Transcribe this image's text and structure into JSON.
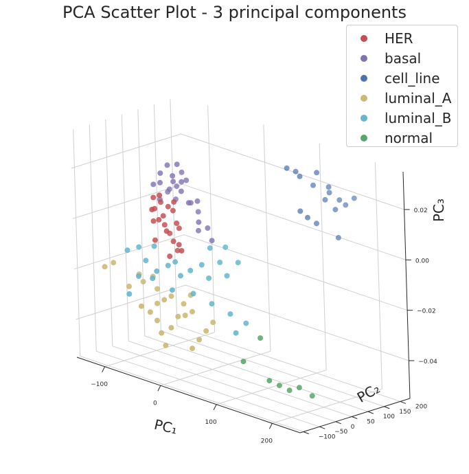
{
  "chart_data": {
    "type": "scatter",
    "projection": "3d",
    "title": "PCA Scatter Plot - 3 principal components",
    "xlabel": "PC₁",
    "ylabel": "PC₂",
    "zlabel": "PC₃",
    "x_ticks": [
      "−100",
      "0",
      "100",
      "200"
    ],
    "y_ticks": [
      "−100",
      "−50",
      "0",
      "50",
      "100",
      "150",
      "200"
    ],
    "z_ticks": [
      "−0.04",
      "−0.02",
      "0.00",
      "0.02"
    ],
    "grid": true,
    "legend_position": "top-right",
    "series": [
      {
        "name": "HER",
        "color": "#c44e52",
        "points": [
          [
            -45,
            -10,
            0.005
          ],
          [
            -60,
            -15,
            0.002
          ],
          [
            -30,
            -5,
            0.008
          ],
          [
            -40,
            0,
            -0.002
          ],
          [
            -55,
            -20,
            -0.005
          ],
          [
            -25,
            -10,
            0.012
          ],
          [
            -35,
            -18,
            0.0
          ],
          [
            -50,
            -8,
            0.01
          ],
          [
            -20,
            -12,
            0.004
          ],
          [
            -65,
            -2,
            0.006
          ],
          [
            -15,
            -15,
            -0.004
          ],
          [
            -42,
            -25,
            0.014
          ],
          [
            -28,
            2,
            -0.008
          ],
          [
            -52,
            -12,
            0.003
          ],
          [
            -38,
            -6,
            0.009
          ],
          [
            -58,
            -22,
            0.007
          ],
          [
            -22,
            -20,
            -0.003
          ],
          [
            -33,
            -14,
            -0.01
          ],
          [
            -47,
            -3,
            0.001
          ],
          [
            -18,
            -8,
            0.002
          ],
          [
            -10,
            -16,
            -0.006
          ],
          [
            -62,
            -10,
            0.011
          ]
        ]
      },
      {
        "name": "basal",
        "color": "#8172b2",
        "points": [
          [
            -60,
            10,
            0.02
          ],
          [
            -40,
            15,
            0.018
          ],
          [
            -20,
            5,
            0.016
          ],
          [
            -50,
            20,
            0.014
          ],
          [
            -30,
            25,
            0.022
          ],
          [
            -10,
            10,
            0.012
          ],
          [
            -70,
            5,
            0.015
          ],
          [
            -45,
            30,
            0.01
          ],
          [
            -25,
            15,
            0.019
          ],
          [
            -55,
            0,
            0.017
          ],
          [
            0,
            20,
            0.013
          ],
          [
            -35,
            5,
            0.021
          ],
          [
            -15,
            25,
            0.011
          ],
          [
            -65,
            15,
            0.009
          ],
          [
            10,
            5,
            0.006
          ],
          [
            -5,
            30,
            0.008
          ],
          [
            -48,
            12,
            0.024
          ],
          [
            -28,
            8,
            0.026
          ],
          [
            20,
            15,
            0.004
          ],
          [
            -38,
            22,
            0.016
          ],
          [
            -58,
            28,
            0.012
          ],
          [
            5,
            12,
            0.002
          ],
          [
            -18,
            18,
            0.02
          ],
          [
            30,
            10,
            0.0
          ]
        ]
      },
      {
        "name": "cell_line",
        "color": "#4c72b0",
        "points": [
          [
            140,
            60,
            0.035
          ],
          [
            150,
            70,
            0.034
          ],
          [
            160,
            65,
            0.033
          ],
          [
            175,
            80,
            0.03
          ],
          [
            185,
            75,
            0.036
          ],
          [
            190,
            90,
            0.025
          ],
          [
            200,
            85,
            0.031
          ],
          [
            195,
            95,
            0.028
          ],
          [
            210,
            100,
            0.026
          ],
          [
            165,
            55,
            0.02
          ],
          [
            175,
            60,
            0.018
          ],
          [
            185,
            70,
            0.016
          ],
          [
            205,
            95,
            0.022
          ],
          [
            215,
            110,
            0.024
          ],
          [
            225,
            120,
            0.027
          ],
          [
            215,
            85,
            0.012
          ]
        ]
      },
      {
        "name": "luminal_A",
        "color": "#ccb974",
        "points": [
          [
            -130,
            -50,
            -0.02
          ],
          [
            -120,
            -40,
            -0.018
          ],
          [
            -90,
            -45,
            -0.025
          ],
          [
            -80,
            -30,
            -0.02
          ],
          [
            -60,
            -60,
            -0.03
          ],
          [
            -50,
            -50,
            -0.032
          ],
          [
            -40,
            -45,
            -0.028
          ],
          [
            -30,
            -40,
            -0.026
          ],
          [
            -20,
            -35,
            -0.024
          ],
          [
            -10,
            -55,
            -0.035
          ],
          [
            0,
            -50,
            -0.03
          ],
          [
            10,
            -45,
            -0.029
          ],
          [
            20,
            -40,
            -0.027
          ],
          [
            30,
            -60,
            -0.04
          ],
          [
            40,
            -55,
            -0.036
          ],
          [
            -70,
            -35,
            -0.022
          ],
          [
            -55,
            -30,
            -0.019
          ],
          [
            -45,
            -35,
            -0.023
          ],
          [
            -35,
            -55,
            -0.034
          ],
          [
            -25,
            -60,
            -0.038
          ],
          [
            -15,
            -65,
            -0.042
          ],
          [
            5,
            -40,
            -0.025
          ],
          [
            15,
            -35,
            -0.021
          ],
          [
            50,
            -50,
            -0.032
          ],
          [
            60,
            -45,
            -0.028
          ]
        ]
      },
      {
        "name": "luminal_B",
        "color": "#64b5cd",
        "points": [
          [
            -100,
            -30,
            -0.012
          ],
          [
            -85,
            -20,
            -0.01
          ],
          [
            -70,
            -25,
            -0.014
          ],
          [
            -60,
            -15,
            -0.008
          ],
          [
            -45,
            -35,
            -0.016
          ],
          [
            -30,
            -25,
            -0.013
          ],
          [
            -20,
            -20,
            -0.011
          ],
          [
            -5,
            -30,
            -0.015
          ],
          [
            10,
            -25,
            -0.012
          ],
          [
            25,
            -15,
            -0.009
          ],
          [
            40,
            -20,
            -0.013
          ],
          [
            55,
            -10,
            -0.006
          ],
          [
            70,
            -15,
            -0.01
          ],
          [
            85,
            -5,
            -0.004
          ],
          [
            -75,
            -40,
            -0.02
          ],
          [
            -50,
            -40,
            -0.019
          ],
          [
            -15,
            -40,
            -0.021
          ],
          [
            20,
            -35,
            -0.02
          ],
          [
            50,
            -30,
            -0.022
          ],
          [
            80,
            -25,
            -0.024
          ],
          [
            95,
            -35,
            -0.03
          ],
          [
            105,
            -20,
            -0.026
          ],
          [
            -90,
            -45,
            -0.028
          ],
          [
            35,
            -5,
            -0.002
          ],
          [
            60,
            0,
            0.0
          ]
        ]
      },
      {
        "name": "normal",
        "color": "#55a868",
        "points": [
          [
            110,
            -40,
            -0.04
          ],
          [
            150,
            -30,
            -0.045
          ],
          [
            165,
            -25,
            -0.046
          ],
          [
            180,
            -20,
            -0.047
          ],
          [
            195,
            -15,
            -0.045
          ],
          [
            215,
            -10,
            -0.047
          ],
          [
            130,
            -20,
            -0.03
          ]
        ]
      }
    ]
  }
}
